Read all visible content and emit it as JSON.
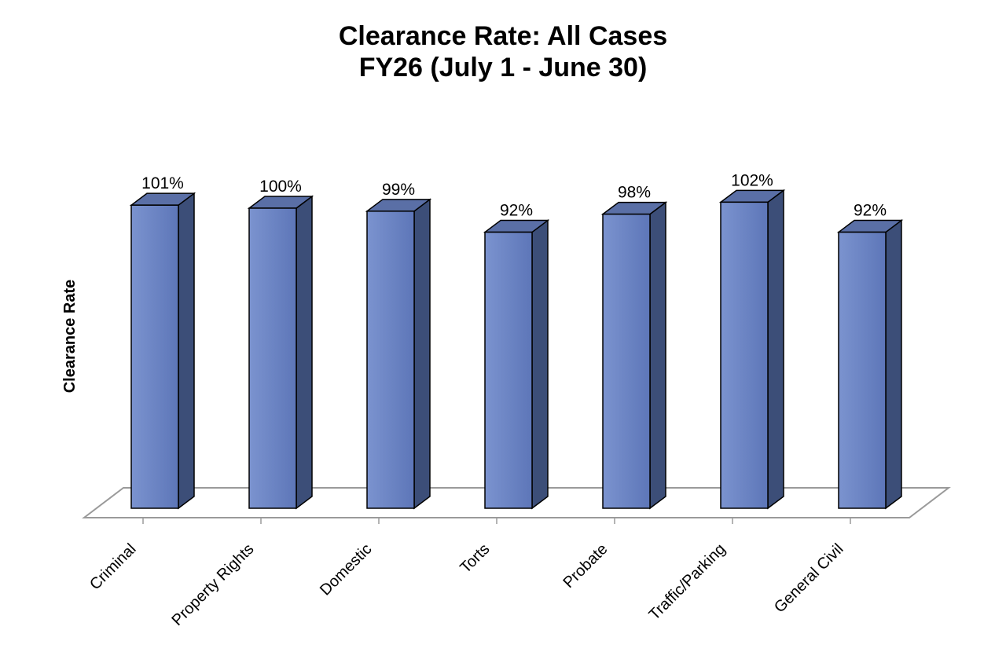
{
  "chart_data": {
    "type": "bar",
    "title": "Clearance Rate: All Cases",
    "subtitle": "FY26 (July 1 - June 30)",
    "ylabel": "Clearance Rate",
    "xlabel": "",
    "categories": [
      "Criminal",
      "Property Rights",
      "Domestic",
      "Torts",
      "Probate",
      "Traffic/Parking",
      "General Civil"
    ],
    "values": [
      101,
      100,
      99,
      92,
      98,
      102,
      92
    ],
    "data_labels": [
      "101%",
      "100%",
      "99%",
      "92%",
      "98%",
      "102%",
      "92%"
    ],
    "value_unit": "%",
    "ylim": [
      0,
      102
    ],
    "grid": false,
    "legend": "none",
    "style": "3d-column",
    "colors": {
      "bar_front": "#7b93cf",
      "bar_front_dark": "#5d76b8",
      "bar_top": "#5a6fa6",
      "bar_side": "#3c4e78",
      "floor": "#9a9a9a"
    }
  }
}
